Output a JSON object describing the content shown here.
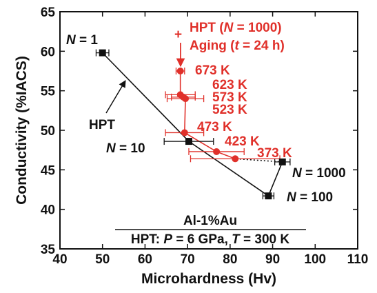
{
  "chart_data": {
    "type": "scatter",
    "xlabel": "Microhardness (Hv)",
    "ylabel": "Conductivity (%IACS)",
    "xlim": [
      40,
      110
    ],
    "ylim": [
      35,
      65
    ],
    "xticks": [
      "40",
      "50",
      "60",
      "70",
      "80",
      "90",
      "100",
      "110"
    ],
    "yticks": [
      "35",
      "40",
      "45",
      "50",
      "55",
      "60",
      "65"
    ],
    "grid": false,
    "colors": {
      "hpt": "#111111",
      "aging": "#e0302a"
    },
    "series": [
      {
        "key": "hpt",
        "points": [
          {
            "x": 50.0,
            "y": 59.8,
            "xerr": 1.5,
            "label": "N = 1"
          },
          {
            "x": 70.3,
            "y": 48.6,
            "xerr": 5.8,
            "label": "N = 10"
          },
          {
            "x": 89.0,
            "y": 41.7,
            "xerr": 1.3,
            "label": "N = 100"
          },
          {
            "x": 92.3,
            "y": 46.0,
            "xerr": 1.8,
            "label": "N = 1000"
          }
        ]
      },
      {
        "key": "aging",
        "points": [
          {
            "x": 68.3,
            "y": 57.5,
            "xerr": 1.0,
            "label": "673 K"
          },
          {
            "x": 68.3,
            "y": 54.5,
            "xerr": 3.5,
            "label": "623 K"
          },
          {
            "x": 69.0,
            "y": 54.2,
            "xerr": 2.8,
            "label": "573 K"
          },
          {
            "x": 69.5,
            "y": 54.0,
            "xerr": 4.3,
            "label": "523 K"
          },
          {
            "x": 69.3,
            "y": 49.7,
            "xerr": 4.5,
            "label": "473 K"
          },
          {
            "x": 76.8,
            "y": 47.3,
            "xerr": 6.5,
            "label": "423 K"
          },
          {
            "x": 81.2,
            "y": 46.4,
            "xerr": 10.5,
            "label": "373 K"
          }
        ]
      }
    ],
    "annotations": {
      "hpt_arrow": "HPT",
      "plus": "+",
      "aging_title_line1": "HPT (N = 1000)",
      "aging_title_line2": "Aging (t = 24 h)",
      "material": "Al-1%Au",
      "conditions": "HPT: P = 6 GPa, T = 300 K"
    }
  }
}
